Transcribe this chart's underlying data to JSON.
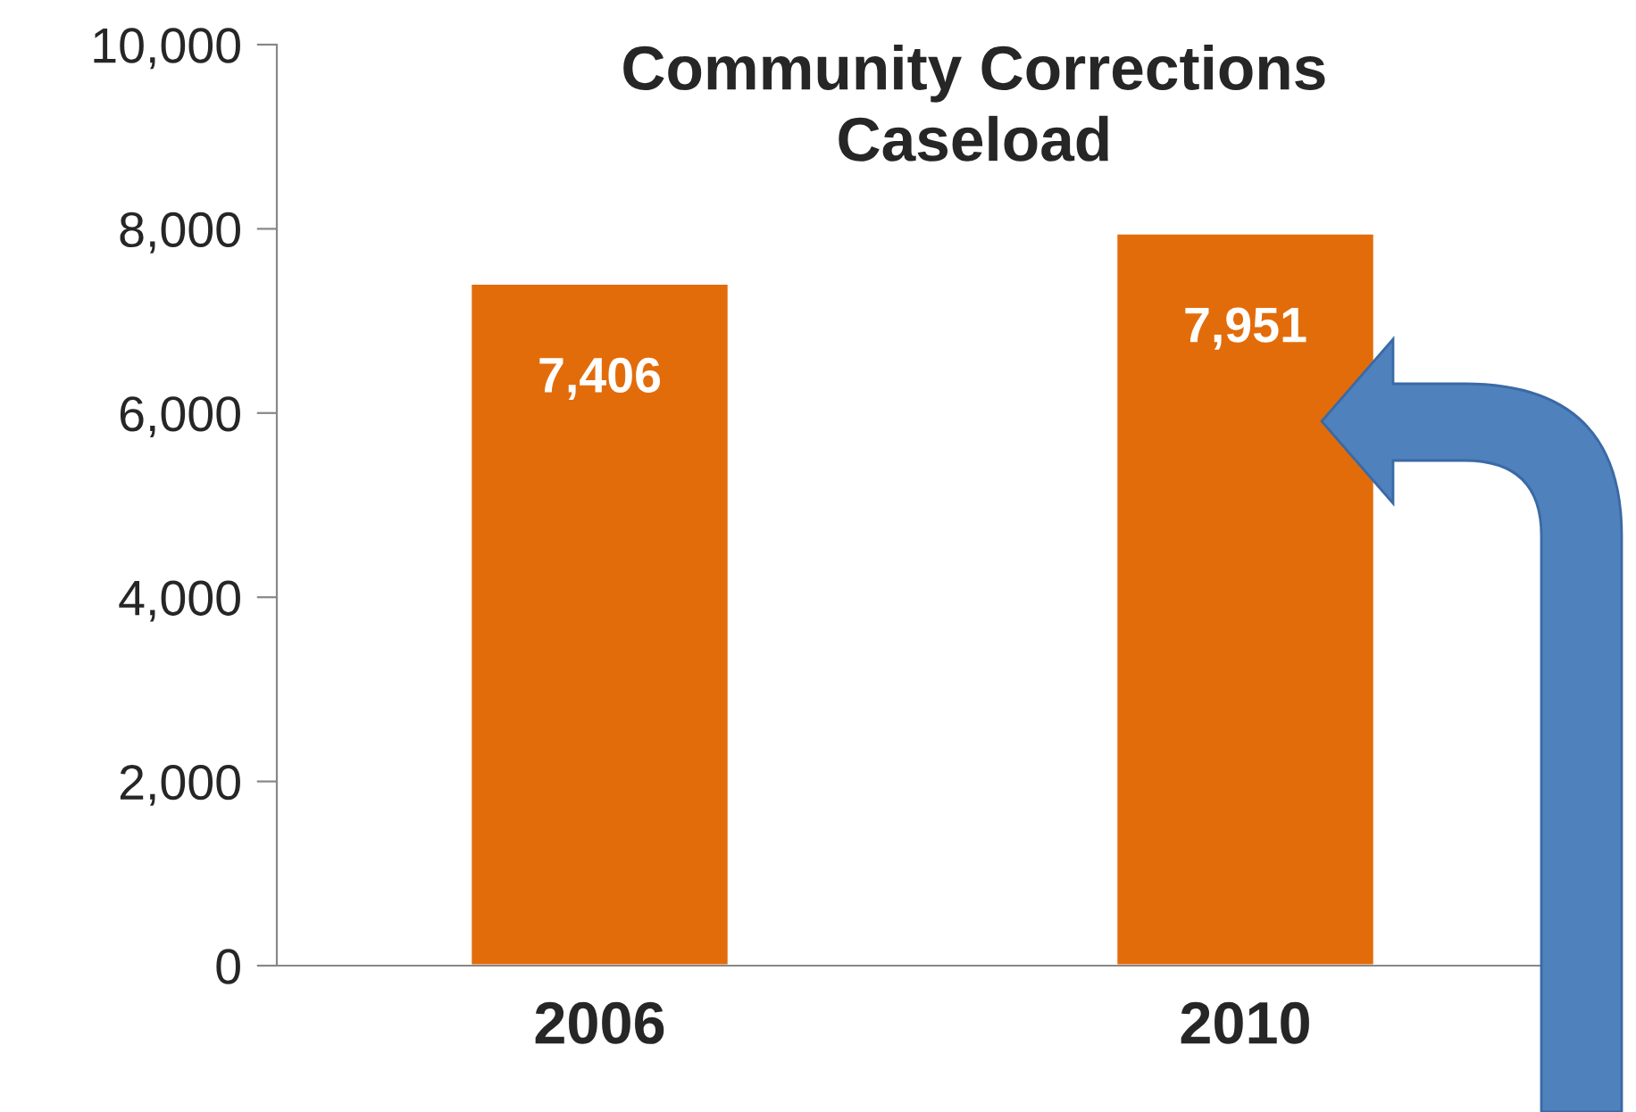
{
  "chart_data": {
    "type": "bar",
    "title": "Community Corrections\nCaseload",
    "categories": [
      "2006",
      "2010"
    ],
    "values": [
      7406,
      7951
    ],
    "color": "#e36c0a",
    "ylim": [
      0,
      10000
    ],
    "yticks": [
      0,
      {
        "value": 2000,
        "label": "2,000"
      },
      {
        "value": 4000,
        "label": "4,000"
      },
      {
        "value": 6000,
        "label": "6,000"
      },
      {
        "value": 8000,
        "label": "8,000"
      },
      {
        "value": 10000,
        "label": "10,000"
      }
    ],
    "data_labels": true,
    "value_labels": [
      "7,406",
      "7,951"
    ],
    "grid": false,
    "legend": false
  }
}
